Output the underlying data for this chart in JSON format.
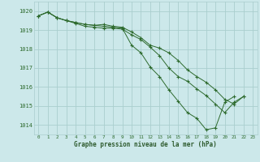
{
  "bg_color": "#cce8ea",
  "grid_color": "#aacece",
  "line_color": "#2d6a2d",
  "xlabel": "Graphe pression niveau de la mer (hPa)",
  "xlabel_color": "#2d5a2d",
  "ylim": [
    1013.5,
    1020.5
  ],
  "xlim": [
    -0.5,
    23.5
  ],
  "yticks": [
    1014,
    1015,
    1016,
    1017,
    1018,
    1019,
    1020
  ],
  "xticks": [
    0,
    1,
    2,
    3,
    4,
    5,
    6,
    7,
    8,
    9,
    10,
    11,
    12,
    13,
    14,
    15,
    16,
    17,
    18,
    19,
    20,
    21,
    22,
    23
  ],
  "series": [
    [
      1019.75,
      1019.95,
      1019.65,
      1019.5,
      1019.4,
      1019.3,
      1019.25,
      1019.2,
      1019.15,
      1019.1,
      1018.2,
      1017.8,
      1017.05,
      1016.55,
      1015.85,
      1015.25,
      1014.65,
      1014.35,
      1013.75,
      1013.85,
      1015.2,
      1015.5,
      null,
      null
    ],
    [
      1019.75,
      1019.95,
      1019.65,
      1019.5,
      1019.35,
      1019.2,
      1019.15,
      1019.1,
      1019.1,
      1019.05,
      1018.75,
      1018.5,
      1018.1,
      1017.65,
      1017.0,
      1016.55,
      1016.3,
      1015.9,
      1015.55,
      1015.1,
      1014.65,
      1015.2,
      1015.5,
      null
    ],
    [
      1019.75,
      1019.95,
      1019.65,
      1019.5,
      1019.4,
      1019.3,
      1019.25,
      1019.3,
      1019.2,
      1019.15,
      1018.9,
      1018.6,
      1018.2,
      1018.05,
      1017.8,
      1017.4,
      1016.9,
      1016.55,
      1016.25,
      1015.85,
      1015.35,
      1015.1,
      1015.5,
      null
    ]
  ]
}
